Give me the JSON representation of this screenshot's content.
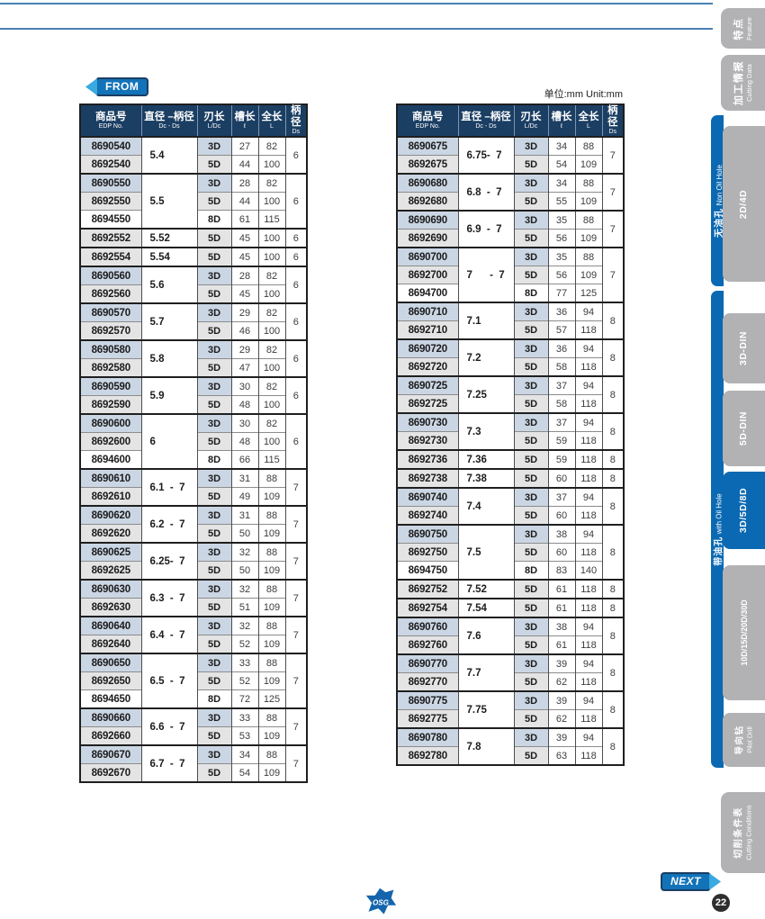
{
  "page": {
    "unit_label": "单位:mm   Unit:mm",
    "from_label": "FROM",
    "next_label": "NEXT",
    "page_number": "22",
    "logo_text": "OSG"
  },
  "colors": {
    "navy": "#1b3e63",
    "blue": "#0a69b2",
    "tab_gray": "#b2b2b4",
    "cell_blue": "#cbd6e4",
    "cell_gray": "#e4e4e5",
    "badge_blue": "#1273b9",
    "arrow_blue": "#39a9e0",
    "line_blue": "#4a80b4",
    "ink": "#1f1f1f"
  },
  "table_headers": [
    {
      "zh": "商品号",
      "sub": "EDP No."
    },
    {
      "zh": "直径 –柄径",
      "sub": "Dc - Ds"
    },
    {
      "zh": "刃长",
      "sub": "L/Dc"
    },
    {
      "zh": "槽长",
      "sub": "ℓ"
    },
    {
      "zh": "全长",
      "sub": "L"
    },
    {
      "zh": "柄径",
      "sub": "Ds"
    }
  ],
  "left_table": {
    "groups": [
      {
        "dia": "5.4",
        "ds": "6",
        "rows": [
          [
            "8690540",
            "3D",
            "27",
            "82"
          ],
          [
            "8692540",
            "5D",
            "44",
            "100"
          ]
        ]
      },
      {
        "dia": "5.5",
        "ds": "6",
        "rows": [
          [
            "8690550",
            "3D",
            "28",
            "82"
          ],
          [
            "8692550",
            "5D",
            "44",
            "100"
          ],
          [
            "8694550",
            "8D",
            "61",
            "115"
          ]
        ]
      },
      {
        "dia": "5.52",
        "ds": "6",
        "rows": [
          [
            "8692552",
            "5D",
            "45",
            "100"
          ]
        ]
      },
      {
        "dia": "5.54",
        "ds": "6",
        "rows": [
          [
            "8692554",
            "5D",
            "45",
            "100"
          ]
        ]
      },
      {
        "dia": "5.6",
        "ds": "6",
        "rows": [
          [
            "8690560",
            "3D",
            "28",
            "82"
          ],
          [
            "8692560",
            "5D",
            "45",
            "100"
          ]
        ]
      },
      {
        "dia": "5.7",
        "ds": "6",
        "rows": [
          [
            "8690570",
            "3D",
            "29",
            "82"
          ],
          [
            "8692570",
            "5D",
            "46",
            "100"
          ]
        ]
      },
      {
        "dia": "5.8",
        "ds": "6",
        "rows": [
          [
            "8690580",
            "3D",
            "29",
            "82"
          ],
          [
            "8692580",
            "5D",
            "47",
            "100"
          ]
        ]
      },
      {
        "dia": "5.9",
        "ds": "6",
        "rows": [
          [
            "8690590",
            "3D",
            "30",
            "82"
          ],
          [
            "8692590",
            "5D",
            "48",
            "100"
          ]
        ]
      },
      {
        "dia": "6",
        "ds": "6",
        "rows": [
          [
            "8690600",
            "3D",
            "30",
            "82"
          ],
          [
            "8692600",
            "5D",
            "48",
            "100"
          ],
          [
            "8694600",
            "8D",
            "66",
            "115"
          ]
        ]
      },
      {
        "dia": "6.1  -  7",
        "ds": "7",
        "rows": [
          [
            "8690610",
            "3D",
            "31",
            "88"
          ],
          [
            "8692610",
            "5D",
            "49",
            "109"
          ]
        ]
      },
      {
        "dia": "6.2  -  7",
        "ds": "7",
        "rows": [
          [
            "8690620",
            "3D",
            "31",
            "88"
          ],
          [
            "8692620",
            "5D",
            "50",
            "109"
          ]
        ]
      },
      {
        "dia": "6.25-  7",
        "ds": "7",
        "rows": [
          [
            "8690625",
            "3D",
            "32",
            "88"
          ],
          [
            "8692625",
            "5D",
            "50",
            "109"
          ]
        ]
      },
      {
        "dia": "6.3  -  7",
        "ds": "7",
        "rows": [
          [
            "8690630",
            "3D",
            "32",
            "88"
          ],
          [
            "8692630",
            "5D",
            "51",
            "109"
          ]
        ]
      },
      {
        "dia": "6.4  -  7",
        "ds": "7",
        "rows": [
          [
            "8690640",
            "3D",
            "32",
            "88"
          ],
          [
            "8692640",
            "5D",
            "52",
            "109"
          ]
        ]
      },
      {
        "dia": "6.5  -  7",
        "ds": "7",
        "rows": [
          [
            "8690650",
            "3D",
            "33",
            "88"
          ],
          [
            "8692650",
            "5D",
            "52",
            "109"
          ],
          [
            "8694650",
            "8D",
            "72",
            "125"
          ]
        ]
      },
      {
        "dia": "6.6  -  7",
        "ds": "7",
        "rows": [
          [
            "8690660",
            "3D",
            "33",
            "88"
          ],
          [
            "8692660",
            "5D",
            "53",
            "109"
          ]
        ]
      },
      {
        "dia": "6.7  -  7",
        "ds": "7",
        "rows": [
          [
            "8690670",
            "3D",
            "34",
            "88"
          ],
          [
            "8692670",
            "5D",
            "54",
            "109"
          ]
        ]
      }
    ]
  },
  "right_table": {
    "groups": [
      {
        "dia": "6.75-  7",
        "ds": "7",
        "rows": [
          [
            "8690675",
            "3D",
            "34",
            "88"
          ],
          [
            "8692675",
            "5D",
            "54",
            "109"
          ]
        ]
      },
      {
        "dia": "6.8  -  7",
        "ds": "7",
        "rows": [
          [
            "8690680",
            "3D",
            "34",
            "88"
          ],
          [
            "8692680",
            "5D",
            "55",
            "109"
          ]
        ]
      },
      {
        "dia": "6.9  -  7",
        "ds": "7",
        "rows": [
          [
            "8690690",
            "3D",
            "35",
            "88"
          ],
          [
            "8692690",
            "5D",
            "56",
            "109"
          ]
        ]
      },
      {
        "dia": "7      -  7",
        "ds": "7",
        "rows": [
          [
            "8690700",
            "3D",
            "35",
            "88"
          ],
          [
            "8692700",
            "5D",
            "56",
            "109"
          ],
          [
            "8694700",
            "8D",
            "77",
            "125"
          ]
        ]
      },
      {
        "dia": "7.1",
        "ds": "8",
        "rows": [
          [
            "8690710",
            "3D",
            "36",
            "94"
          ],
          [
            "8692710",
            "5D",
            "57",
            "118"
          ]
        ]
      },
      {
        "dia": "7.2",
        "ds": "8",
        "rows": [
          [
            "8690720",
            "3D",
            "36",
            "94"
          ],
          [
            "8692720",
            "5D",
            "58",
            "118"
          ]
        ]
      },
      {
        "dia": "7.25",
        "ds": "8",
        "rows": [
          [
            "8690725",
            "3D",
            "37",
            "94"
          ],
          [
            "8692725",
            "5D",
            "58",
            "118"
          ]
        ]
      },
      {
        "dia": "7.3",
        "ds": "8",
        "rows": [
          [
            "8690730",
            "3D",
            "37",
            "94"
          ],
          [
            "8692730",
            "5D",
            "59",
            "118"
          ]
        ]
      },
      {
        "dia": "7.36",
        "ds": "8",
        "rows": [
          [
            "8692736",
            "5D",
            "59",
            "118"
          ]
        ]
      },
      {
        "dia": "7.38",
        "ds": "8",
        "rows": [
          [
            "8692738",
            "5D",
            "60",
            "118"
          ]
        ]
      },
      {
        "dia": "7.4",
        "ds": "8",
        "rows": [
          [
            "8690740",
            "3D",
            "37",
            "94"
          ],
          [
            "8692740",
            "5D",
            "60",
            "118"
          ]
        ]
      },
      {
        "dia": "7.5",
        "ds": "8",
        "rows": [
          [
            "8690750",
            "3D",
            "38",
            "94"
          ],
          [
            "8692750",
            "5D",
            "60",
            "118"
          ],
          [
            "8694750",
            "8D",
            "83",
            "140"
          ]
        ]
      },
      {
        "dia": "7.52",
        "ds": "8",
        "rows": [
          [
            "8692752",
            "5D",
            "61",
            "118"
          ]
        ]
      },
      {
        "dia": "7.54",
        "ds": "8",
        "rows": [
          [
            "8692754",
            "5D",
            "61",
            "118"
          ]
        ]
      },
      {
        "dia": "7.6",
        "ds": "8",
        "rows": [
          [
            "8690760",
            "3D",
            "38",
            "94"
          ],
          [
            "8692760",
            "5D",
            "61",
            "118"
          ]
        ]
      },
      {
        "dia": "7.7",
        "ds": "8",
        "rows": [
          [
            "8690770",
            "3D",
            "39",
            "94"
          ],
          [
            "8692770",
            "5D",
            "62",
            "118"
          ]
        ]
      },
      {
        "dia": "7.75",
        "ds": "8",
        "rows": [
          [
            "8690775",
            "3D",
            "39",
            "94"
          ],
          [
            "8692775",
            "5D",
            "62",
            "118"
          ]
        ]
      },
      {
        "dia": "7.8",
        "ds": "8",
        "rows": [
          [
            "8690780",
            "3D",
            "39",
            "94"
          ],
          [
            "8692780",
            "5D",
            "63",
            "118"
          ]
        ]
      }
    ]
  },
  "sidebar": {
    "feature": {
      "zh": "特点",
      "en": "Feature"
    },
    "cutting_data": {
      "zh": "加工情报",
      "en": "Cutting Data"
    },
    "non_oil": {
      "strip_zh": "无油孔",
      "strip_en": "Non Oil Hole",
      "tab_2d4d": "2D/4D"
    },
    "with_oil": {
      "strip_zh": "带油孔",
      "strip_en": "with Oil Hole",
      "tab_3d_din": "3D-DIN",
      "tab_5d_din": "5D-DIN",
      "tab_3d5d8d": "3D/5D/8D",
      "tab_10d30d": "10D/15D/20D/30D",
      "pilot": {
        "zh": "导向钻",
        "en": "Pilot Drill"
      }
    },
    "cutting_conditions": {
      "zh": "切削条件表",
      "en": "Cutting Conditions"
    },
    "active_tab": "3D/5D/8D"
  }
}
